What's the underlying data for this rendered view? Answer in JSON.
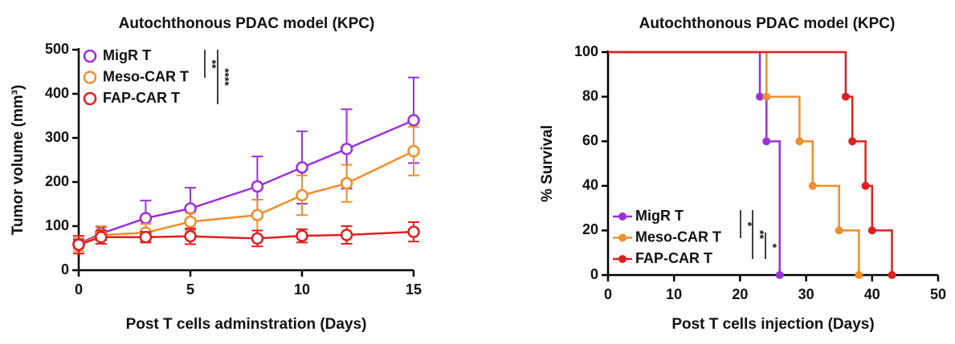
{
  "chart_data": [
    {
      "type": "line",
      "title": "Autochthonous PDAC model (KPC)",
      "x_label": "Post T cells adminstration (Days)",
      "y_label": "Tumor volume (mm³)",
      "x": [
        0,
        1,
        3,
        5,
        8,
        10,
        12,
        15
      ],
      "series": [
        {
          "name": "MigR T",
          "color": "#9b30d9",
          "values": [
            60,
            83,
            118,
            140,
            190,
            233,
            275,
            340
          ],
          "errors": [
            10,
            15,
            40,
            47,
            68,
            82,
            90,
            97
          ]
        },
        {
          "name": "Meso-CAR T",
          "color": "#ee8f2b",
          "values": [
            58,
            80,
            85,
            110,
            125,
            170,
            197,
            270
          ],
          "errors": [
            15,
            20,
            20,
            20,
            35,
            45,
            42,
            55
          ]
        },
        {
          "name": "FAP-CAR T",
          "color": "#e01f1f",
          "values": [
            58,
            75,
            75,
            77,
            72,
            78,
            80,
            87
          ],
          "errors": [
            20,
            15,
            12,
            18,
            18,
            15,
            20,
            22
          ]
        }
      ],
      "xlim": [
        0,
        15
      ],
      "xticks": [
        0,
        5,
        10,
        15
      ],
      "ylim": [
        0,
        500
      ],
      "yticks": [
        0,
        100,
        200,
        300,
        400,
        500
      ],
      "legend": "upper left",
      "annotations": [
        "**",
        "****"
      ]
    },
    {
      "type": "step",
      "title": "Autochthonous PDAC model (KPC)",
      "x_label": "Post T cells injection (Days)",
      "y_label": "% Survival",
      "series": [
        {
          "name": "MigR T",
          "color": "#9b30d9",
          "x": [
            0,
            23,
            24,
            26
          ],
          "values": [
            100,
            80,
            60,
            0
          ]
        },
        {
          "name": "Meso-CAR T",
          "color": "#ee8f2b",
          "x": [
            0,
            24,
            29,
            31,
            35,
            38
          ],
          "values": [
            100,
            80,
            60,
            40,
            20,
            0
          ]
        },
        {
          "name": "FAP-CAR T",
          "color": "#e01f1f",
          "x": [
            0,
            36,
            37,
            39,
            40,
            43
          ],
          "values": [
            100,
            80,
            60,
            40,
            20,
            0
          ]
        }
      ],
      "xlim": [
        0,
        50
      ],
      "xticks": [
        0,
        10,
        20,
        30,
        40,
        50
      ],
      "ylim": [
        0,
        100
      ],
      "yticks": [
        0,
        20,
        40,
        60,
        80,
        100
      ],
      "legend": "lower left",
      "annotations": [
        "*",
        "**",
        "*"
      ]
    }
  ]
}
